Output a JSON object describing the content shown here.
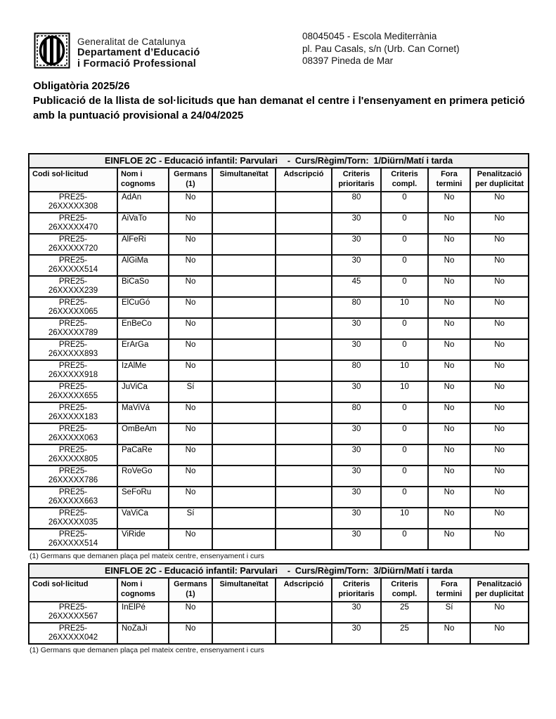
{
  "letterhead": {
    "logo_icon": "generalitat-senyera",
    "org_line1": "Generalitat de Catalunya",
    "org_line2": "Departament d’Educació",
    "org_line3": "i Formació Professional",
    "address_line1": "08045045 - Escola Mediterrània",
    "address_line2": "pl. Pau Casals, s/n (Urb. Can Cornet)",
    "address_line3": "08397 Pineda de Mar"
  },
  "title": {
    "line1": "Obligatòria 2025/26",
    "line2": "Publicació de la llista de sol·licituds que han demanat el centre i l'ensenyament en primera petició amb la puntuació provisional a 24/04/2025"
  },
  "tables": [
    {
      "caption": "EINFLOE 2C - Educació infantil: Parvulari    -  Curs/Règim/Torn:  1/Diürn/Matí i tarda",
      "columns": [
        "Codi sol·licitud",
        "Nom i cognoms",
        "Germans (1)",
        "Simultaneïtat",
        "Adscripció",
        "Criteris prioritaris",
        "Criteris compl.",
        "Fora termini",
        "Penalització per duplicitat"
      ],
      "rows": [
        {
          "codi": [
            "PRE25-",
            "26XXXXX308"
          ],
          "nom": "AdAn",
          "germans": "No",
          "simultaneitat": "",
          "adscripcio": "",
          "criteris_prioritaris": "80",
          "criteris_compl": "0",
          "fora_termini": "No",
          "penalitzacio": "No"
        },
        {
          "codi": [
            "PRE25-",
            "26XXXXX470"
          ],
          "nom": "AiVaTo",
          "germans": "No",
          "simultaneitat": "",
          "adscripcio": "",
          "criteris_prioritaris": "30",
          "criteris_compl": "0",
          "fora_termini": "No",
          "penalitzacio": "No"
        },
        {
          "codi": [
            "PRE25-",
            "26XXXXX720"
          ],
          "nom": "AlFeRi",
          "germans": "No",
          "simultaneitat": "",
          "adscripcio": "",
          "criteris_prioritaris": "30",
          "criteris_compl": "0",
          "fora_termini": "No",
          "penalitzacio": "No"
        },
        {
          "codi": [
            "PRE25-",
            "26XXXXX514"
          ],
          "nom": "AlGiMa",
          "germans": "No",
          "simultaneitat": "",
          "adscripcio": "",
          "criteris_prioritaris": "30",
          "criteris_compl": "0",
          "fora_termini": "No",
          "penalitzacio": "No"
        },
        {
          "codi": [
            "PRE25-",
            "26XXXXX239"
          ],
          "nom": "BiCaSo",
          "germans": "No",
          "simultaneitat": "",
          "adscripcio": "",
          "criteris_prioritaris": "45",
          "criteris_compl": "0",
          "fora_termini": "No",
          "penalitzacio": "No"
        },
        {
          "codi": [
            "PRE25-",
            "26XXXXX065"
          ],
          "nom": "ElCuGó",
          "germans": "No",
          "simultaneitat": "",
          "adscripcio": "",
          "criteris_prioritaris": "80",
          "criteris_compl": "10",
          "fora_termini": "No",
          "penalitzacio": "No"
        },
        {
          "codi": [
            "PRE25-",
            "26XXXXX789"
          ],
          "nom": "EnBeCo",
          "germans": "No",
          "simultaneitat": "",
          "adscripcio": "",
          "criteris_prioritaris": "30",
          "criteris_compl": "0",
          "fora_termini": "No",
          "penalitzacio": "No"
        },
        {
          "codi": [
            "PRE25-",
            "26XXXXX893"
          ],
          "nom": "ErArGa",
          "germans": "No",
          "simultaneitat": "",
          "adscripcio": "",
          "criteris_prioritaris": "30",
          "criteris_compl": "0",
          "fora_termini": "No",
          "penalitzacio": "No"
        },
        {
          "codi": [
            "PRE25-",
            "26XXXXX918"
          ],
          "nom": "IzAlMe",
          "germans": "No",
          "simultaneitat": "",
          "adscripcio": "",
          "criteris_prioritaris": "80",
          "criteris_compl": "10",
          "fora_termini": "No",
          "penalitzacio": "No"
        },
        {
          "codi": [
            "PRE25-",
            "26XXXXX655"
          ],
          "nom": "JuViCa",
          "germans": "Sí",
          "simultaneitat": "",
          "adscripcio": "",
          "criteris_prioritaris": "30",
          "criteris_compl": "10",
          "fora_termini": "No",
          "penalitzacio": "No"
        },
        {
          "codi": [
            "PRE25-",
            "26XXXXX183"
          ],
          "nom": "MaViVá",
          "germans": "No",
          "simultaneitat": "",
          "adscripcio": "",
          "criteris_prioritaris": "80",
          "criteris_compl": "0",
          "fora_termini": "No",
          "penalitzacio": "No"
        },
        {
          "codi": [
            "PRE25-",
            "26XXXXX063"
          ],
          "nom": "OmBeAm",
          "germans": "No",
          "simultaneitat": "",
          "adscripcio": "",
          "criteris_prioritaris": "30",
          "criteris_compl": "0",
          "fora_termini": "No",
          "penalitzacio": "No"
        },
        {
          "codi": [
            "PRE25-",
            "26XXXXX805"
          ],
          "nom": "PaCaRe",
          "germans": "No",
          "simultaneitat": "",
          "adscripcio": "",
          "criteris_prioritaris": "30",
          "criteris_compl": "0",
          "fora_termini": "No",
          "penalitzacio": "No"
        },
        {
          "codi": [
            "PRE25-",
            "26XXXXX786"
          ],
          "nom": "RoVeGo",
          "germans": "No",
          "simultaneitat": "",
          "adscripcio": "",
          "criteris_prioritaris": "30",
          "criteris_compl": "0",
          "fora_termini": "No",
          "penalitzacio": "No"
        },
        {
          "codi": [
            "PRE25-",
            "26XXXXX663"
          ],
          "nom": "SeFoRu",
          "germans": "No",
          "simultaneitat": "",
          "adscripcio": "",
          "criteris_prioritaris": "30",
          "criteris_compl": "0",
          "fora_termini": "No",
          "penalitzacio": "No"
        },
        {
          "codi": [
            "PRE25-",
            "26XXXXX035"
          ],
          "nom": "VaViCa",
          "germans": "Sí",
          "simultaneitat": "",
          "adscripcio": "",
          "criteris_prioritaris": "30",
          "criteris_compl": "10",
          "fora_termini": "No",
          "penalitzacio": "No"
        },
        {
          "codi": [
            "PRE25-",
            "26XXXXX514"
          ],
          "nom": "ViRide",
          "germans": "No",
          "simultaneitat": "",
          "adscripcio": "",
          "criteris_prioritaris": "30",
          "criteris_compl": "0",
          "fora_termini": "No",
          "penalitzacio": "No"
        }
      ],
      "footnote": "(1) Germans que demanen plaça pel mateix centre, ensenyament i curs"
    },
    {
      "caption": "EINFLOE 2C - Educació infantil: Parvulari    -  Curs/Règim/Torn:  3/Diürn/Matí i tarda",
      "columns": [
        "Codi sol·licitud",
        "Nom i cognoms",
        "Germans (1)",
        "Simultaneïtat",
        "Adscripció",
        "Criteris prioritaris",
        "Criteris compl.",
        "Fora termini",
        "Penalització per duplicitat"
      ],
      "rows": [
        {
          "codi": [
            "PRE25-",
            "26XXXXX567"
          ],
          "nom": "InElPé",
          "germans": "No",
          "simultaneitat": "",
          "adscripcio": "",
          "criteris_prioritaris": "30",
          "criteris_compl": "25",
          "fora_termini": "Sí",
          "penalitzacio": "No"
        },
        {
          "codi": [
            "PRE25-",
            "26XXXXX042"
          ],
          "nom": "NoZaJi",
          "germans": "No",
          "simultaneitat": "",
          "adscripcio": "",
          "criteris_prioritaris": "30",
          "criteris_compl": "25",
          "fora_termini": "No",
          "penalitzacio": "No"
        }
      ],
      "footnote": "(1) Germans que demanen plaça pel mateix centre, ensenyament i curs"
    }
  ]
}
